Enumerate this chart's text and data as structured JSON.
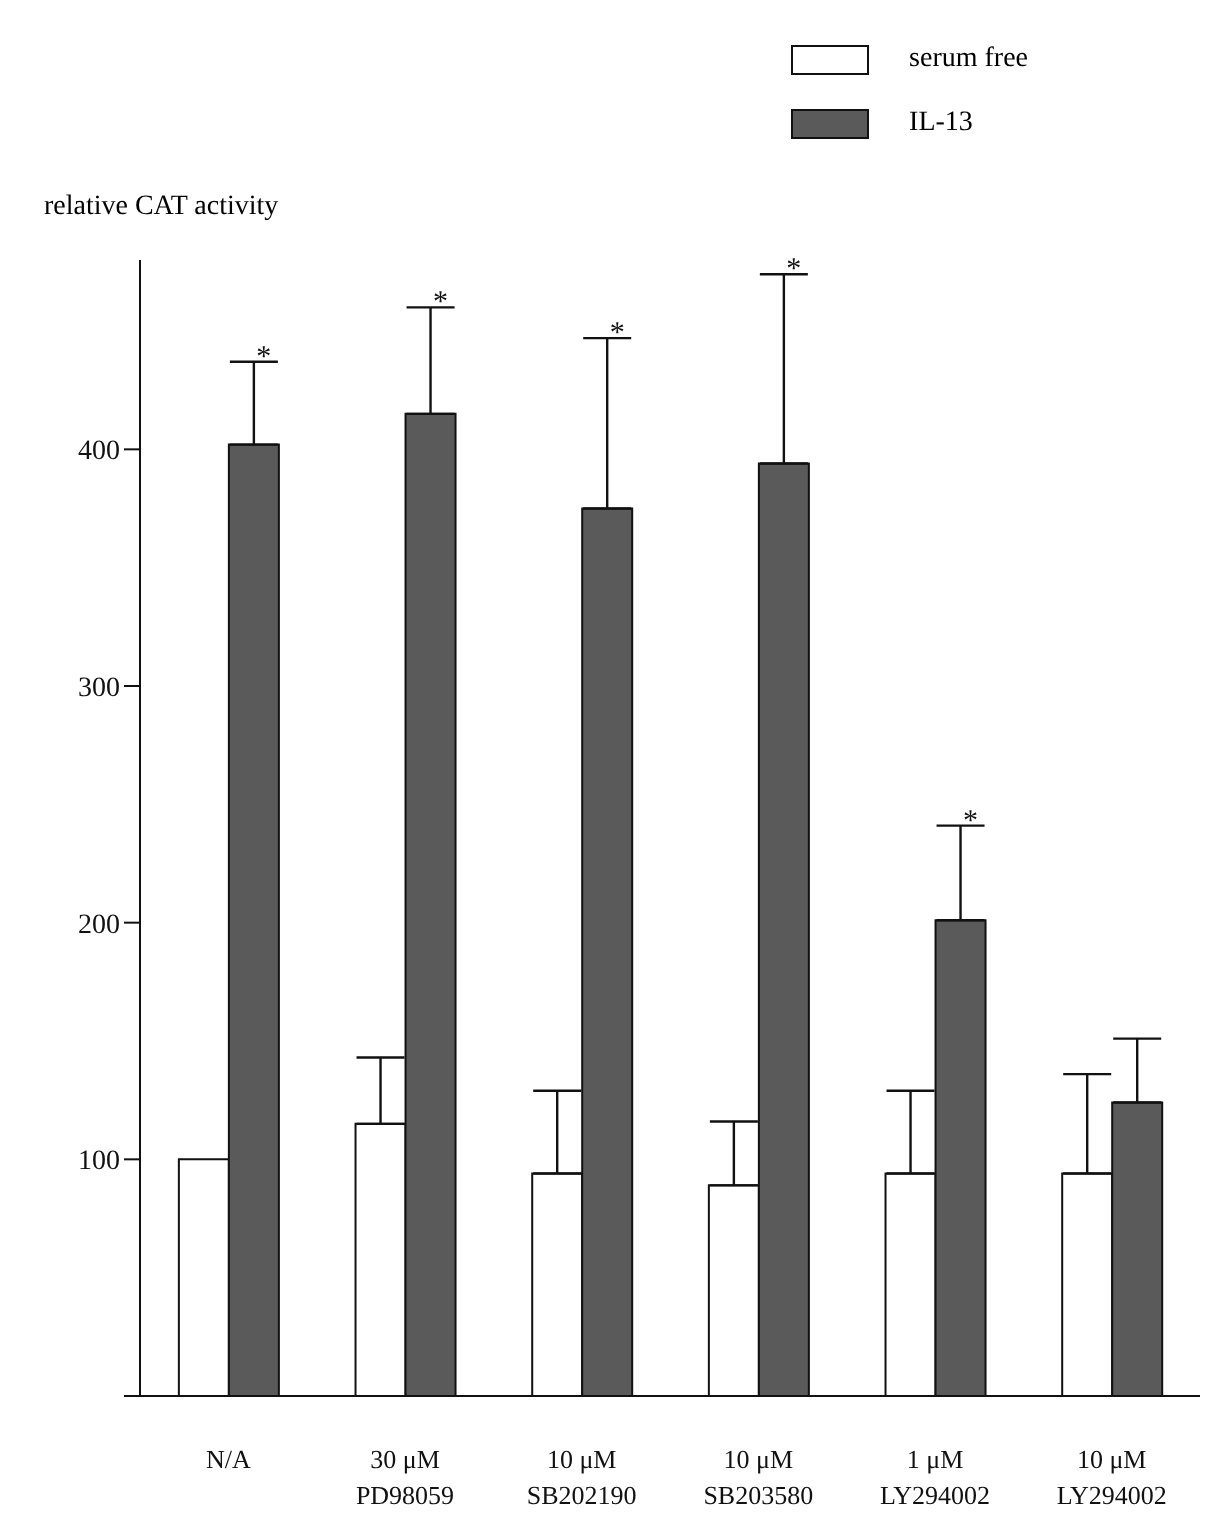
{
  "chart_data": {
    "type": "bar",
    "ylabel": "relative CAT activity",
    "categories": [
      "N/A",
      "30 μM\nPD98059",
      "10 μM\nSB202190",
      "10 μM\nSB203580",
      "1 μM\nLY294002",
      "10 μM\nLY294002"
    ],
    "series": [
      {
        "name": "serum free",
        "color": "#ffffff",
        "values": [
          100,
          115,
          94,
          89,
          94,
          94
        ],
        "errors": [
          null,
          [
            115,
            143
          ],
          [
            94,
            129
          ],
          [
            89,
            116
          ],
          [
            94,
            129
          ],
          [
            94,
            136
          ]
        ]
      },
      {
        "name": "IL-13",
        "color": "#5a5a5a",
        "values": [
          402,
          415,
          375,
          394,
          201,
          124
        ],
        "errors": [
          [
            402,
            437
          ],
          [
            415,
            460
          ],
          [
            375,
            447
          ],
          [
            394,
            474
          ],
          [
            201,
            241
          ],
          [
            124,
            151
          ]
        ]
      }
    ],
    "ylim": [
      0,
      480
    ],
    "yticks": [
      {
        "value": 0,
        "label": null
      },
      100,
      200,
      300,
      400
    ],
    "grid": false,
    "legend": "top right",
    "annotations": [
      "*",
      "*",
      "*",
      "*",
      "*"
    ]
  }
}
